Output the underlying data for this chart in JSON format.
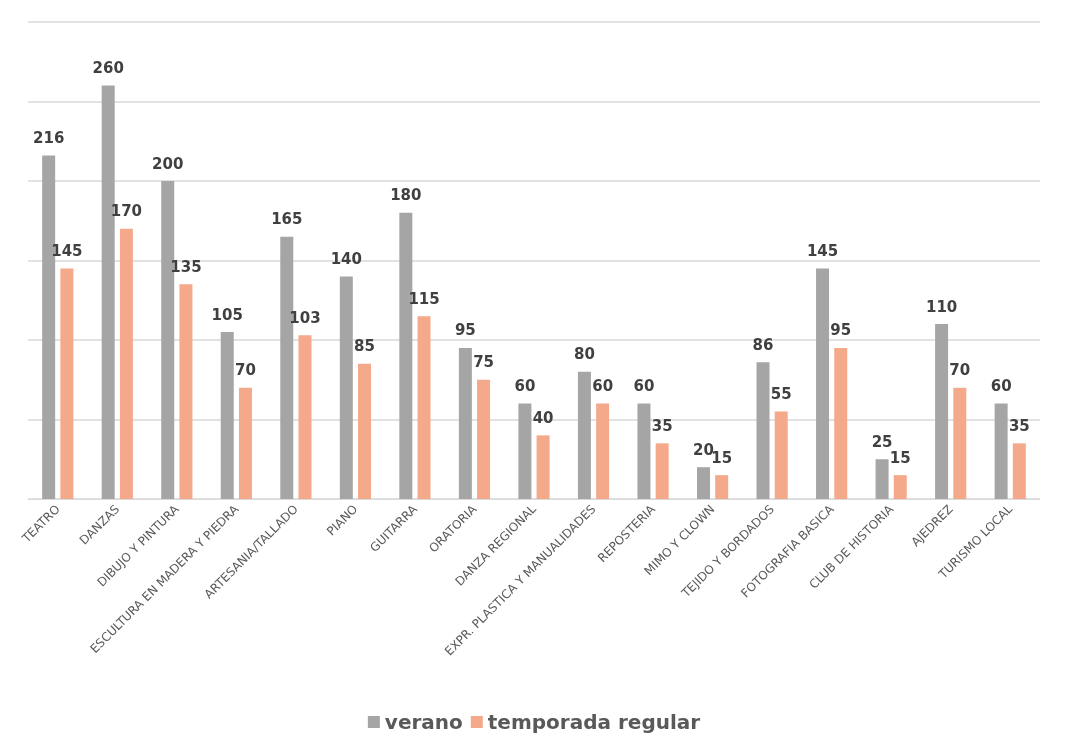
{
  "chart_data": {
    "type": "bar",
    "categories": [
      "TEATRO",
      "DANZAS",
      "DIBUJO Y PINTURA",
      "ESCULTURA EN MADERA Y PIEDRA",
      "ARTESANIA/TALLADO",
      "PIANO",
      "GUITARRA",
      "ORATORIA",
      "DANZA REGIONAL",
      "EXPR. PLASTICA Y MANUALIDADES",
      "REPOSTERIA",
      "MIMO Y CLOWN",
      "TEJIDO Y BORDADOS",
      "FOTOGRAFIA BASICA",
      "CLUB DE HISTORIA",
      "AJEDREZ",
      "TURISMO LOCAL"
    ],
    "series": [
      {
        "name": "verano",
        "color": "#a5a5a5",
        "values": [
          216,
          260,
          200,
          105,
          165,
          140,
          180,
          95,
          60,
          80,
          60,
          20,
          86,
          145,
          25,
          110,
          60
        ]
      },
      {
        "name": "temporada regular",
        "color": "#f4a98a",
        "values": [
          145,
          170,
          135,
          70,
          103,
          85,
          115,
          75,
          40,
          60,
          35,
          15,
          55,
          95,
          15,
          70,
          35
        ]
      }
    ],
    "ylim": [
      0,
      300
    ],
    "yticks": [
      {
        "value": 0,
        "label": null
      },
      {
        "value": 50,
        "label": null
      },
      {
        "value": 100,
        "label": null
      },
      {
        "value": 150,
        "label": null
      },
      {
        "value": 200,
        "label": null
      },
      {
        "value": 250,
        "label": null
      },
      {
        "value": 300,
        "label": null
      }
    ],
    "grid": "y",
    "legend": "bottom",
    "data_labels": true
  }
}
